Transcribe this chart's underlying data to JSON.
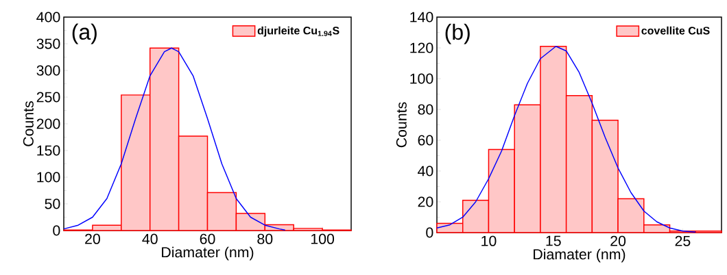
{
  "chart_data": [
    {
      "type": "histogram",
      "xlabel": "Diamater (nm)",
      "ylabel": "Counts",
      "annotations": [
        "(a)"
      ],
      "legend": "top right",
      "bins": [
        10,
        20,
        30,
        40,
        50,
        60,
        70,
        80,
        90,
        100,
        110
      ],
      "xlim": [
        10,
        110
      ],
      "xticks": [
        20,
        40,
        60,
        80,
        100
      ],
      "ylim": [
        0,
        400
      ],
      "yticks": [
        0,
        50,
        100,
        150,
        200,
        250,
        300,
        350,
        400
      ],
      "series": [
        {
          "name": "djurleite Cu$_{1.94}$S",
          "color": "#ff0000",
          "values": [
            1,
            10,
            254,
            342,
            177,
            71,
            32,
            11,
            4,
            1
          ]
        },
        {
          "type": "line",
          "color": "#0000ff",
          "x": [
            10,
            15,
            20,
            25,
            30,
            35,
            40,
            45,
            47.5,
            50,
            55,
            60,
            65,
            70,
            75,
            80,
            85,
            87
          ],
          "values": [
            3,
            10,
            25,
            60,
            125,
            210,
            290,
            335,
            342,
            335,
            290,
            210,
            125,
            60,
            25,
            10,
            3,
            1
          ]
        }
      ]
    },
    {
      "type": "histogram",
      "xlabel": "Diamater (nm)",
      "ylabel": "Counts",
      "annotations": [
        "(b)"
      ],
      "legend": "top right",
      "bins": [
        6,
        8,
        10,
        12,
        14,
        16,
        18,
        20,
        22,
        24,
        26,
        28
      ],
      "xlim": [
        6,
        28
      ],
      "xticks": [
        10,
        15,
        20,
        25
      ],
      "ylim": [
        0,
        140
      ],
      "yticks": [
        0,
        20,
        40,
        60,
        80,
        100,
        120,
        140
      ],
      "series": [
        {
          "name": "covellite CuS",
          "color": "#ff0000",
          "values": [
            6,
            21,
            54,
            83,
            121,
            89,
            73,
            22,
            5,
            1,
            1
          ]
        },
        {
          "type": "line",
          "color": "#0000ff",
          "x": [
            6,
            7,
            8,
            9,
            10,
            11,
            12,
            13,
            14,
            15.2,
            16,
            17,
            18,
            19,
            20,
            21,
            22,
            23,
            24,
            25,
            26
          ],
          "values": [
            3,
            5,
            10,
            20,
            35,
            53,
            76,
            97,
            113,
            121,
            118,
            104,
            84,
            62,
            42,
            26,
            14,
            7,
            3,
            1,
            0.3
          ]
        }
      ]
    }
  ]
}
